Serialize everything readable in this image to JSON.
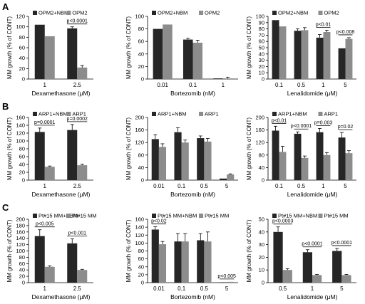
{
  "colors": {
    "series1": "#262626",
    "series2": "#8c8c8c",
    "axis": "#000000",
    "error": "#000000"
  },
  "rows": [
    {
      "label": "A",
      "ylabel": "MM growth (% of CONT)"
    },
    {
      "label": "B",
      "ylabel": "MM growth (% of CONT)"
    },
    {
      "label": "C",
      "ylabel": "MM growth (% of CONT)"
    }
  ],
  "chart_data": [
    {
      "panel": "A",
      "type": "bar",
      "xlabel": "Dexamethasone (μM)",
      "ylabel": "MM growth (% of CONT)",
      "categories": [
        "1",
        "2.5"
      ],
      "ylim": [
        0,
        120
      ],
      "yticks": [
        0,
        20,
        40,
        60,
        80,
        100,
        120
      ],
      "legend": "top-left",
      "series": [
        {
          "name": "OPM2+NBM",
          "values": [
            104,
            97
          ],
          "errors": [
            0,
            3
          ]
        },
        {
          "name": "OPM2",
          "values": [
            82,
            22
          ],
          "errors": [
            0,
            4
          ]
        }
      ],
      "annotations": [
        {
          "text": "p<0.0001",
          "category": 1
        }
      ]
    },
    {
      "panel": "A",
      "type": "bar",
      "xlabel": "Bortezomib (nM)",
      "ylabel": "MM growth (% of CONT)",
      "categories": [
        "0.01",
        "0.1",
        "1"
      ],
      "ylim": [
        0,
        100
      ],
      "yticks": [
        0,
        20,
        40,
        60,
        80,
        100
      ],
      "legend": "top-left",
      "series": [
        {
          "name": "OPM2+NBM",
          "values": [
            80,
            63,
            1
          ],
          "errors": [
            0,
            2,
            0
          ]
        },
        {
          "name": "OPM2",
          "values": [
            87,
            58,
            1
          ],
          "errors": [
            0,
            4,
            2
          ]
        }
      ],
      "annotations": []
    },
    {
      "panel": "A",
      "type": "bar",
      "xlabel": "Lenalidomide (μM)",
      "ylabel": "MM growth (% of CONT)",
      "categories": [
        "0.1",
        "0.5",
        "1",
        "5"
      ],
      "ylim": [
        0,
        100
      ],
      "yticks": [
        0,
        10,
        20,
        30,
        40,
        50,
        60,
        70,
        80,
        90,
        100
      ],
      "legend": "top-left",
      "series": [
        {
          "name": "OPM2+NBM",
          "values": [
            94,
            77,
            66,
            49
          ],
          "errors": [
            0,
            3,
            5,
            0
          ]
        },
        {
          "name": "OPM2",
          "values": [
            84,
            78,
            75,
            64
          ],
          "errors": [
            0,
            4,
            3,
            2
          ]
        }
      ],
      "annotations": [
        {
          "text": "p<0.01",
          "category": 2
        },
        {
          "text": "p<0.008",
          "category": 3
        }
      ]
    },
    {
      "panel": "B",
      "type": "bar",
      "xlabel": "Dexamethasone (μM)",
      "ylabel": "MM growth (% of CONT)",
      "categories": [
        "1",
        "2.5"
      ],
      "ylim": [
        0,
        160
      ],
      "yticks": [
        0,
        20,
        40,
        60,
        80,
        100,
        120,
        140,
        160
      ],
      "legend": "top-left",
      "series": [
        {
          "name": "ARP1+NBM",
          "values": [
            123,
            128
          ],
          "errors": [
            10,
            14
          ]
        },
        {
          "name": "ARP1",
          "values": [
            34,
            38
          ],
          "errors": [
            2,
            3
          ]
        }
      ],
      "annotations": [
        {
          "text": "p=0.0001",
          "category": 0
        },
        {
          "text": "p=0.0002",
          "category": 1
        }
      ]
    },
    {
      "panel": "B",
      "type": "bar",
      "xlabel": "Bortezomib (nM)",
      "ylabel": "MM growth (% of CONT)",
      "categories": [
        "0.01",
        "0.1",
        "0.5",
        "5"
      ],
      "ylim": [
        0,
        200
      ],
      "yticks": [
        0,
        40,
        80,
        120,
        160,
        200
      ],
      "legend": "top-left",
      "series": [
        {
          "name": "ARP1+NBM",
          "values": [
            131,
            153,
            134,
            5
          ],
          "errors": [
            14,
            14,
            7,
            0
          ]
        },
        {
          "name": "ARP1",
          "values": [
            106,
            120,
            123,
            18
          ],
          "errors": [
            10,
            8,
            10,
            2
          ]
        }
      ],
      "annotations": []
    },
    {
      "panel": "B",
      "type": "bar",
      "xlabel": "Lenalidomide (μM)",
      "ylabel": "MM growth (% of CONT)",
      "categories": [
        "0.1",
        "0.5",
        "1",
        "5"
      ],
      "ylim": [
        0,
        200
      ],
      "yticks": [
        0,
        40,
        80,
        120,
        160,
        200
      ],
      "legend": "top-left",
      "series": [
        {
          "name": "ARP1+NBM",
          "values": [
            158,
            148,
            153,
            136
          ],
          "errors": [
            14,
            6,
            12,
            16
          ]
        },
        {
          "name": "ARP1",
          "values": [
            90,
            71,
            80,
            86
          ],
          "errors": [
            18,
            6,
            8,
            8
          ]
        }
      ],
      "annotations": [
        {
          "text": "p<0.01",
          "category": 0
        },
        {
          "text": "p<0.0001",
          "category": 1
        },
        {
          "text": "p=0.003",
          "category": 2
        },
        {
          "text": "p=0.02",
          "category": 3
        }
      ]
    },
    {
      "panel": "C",
      "type": "bar",
      "xlabel": "Dexamethasone (μM)",
      "ylabel": "MM growth (% of CONT)",
      "categories": [
        "1",
        "2.5"
      ],
      "ylim": [
        0,
        200
      ],
      "yticks": [
        0,
        20,
        40,
        60,
        80,
        100,
        120,
        140,
        160,
        180,
        200
      ],
      "legend": "top-left",
      "series": [
        {
          "name": "Pt#15 MM+NBM",
          "values": [
            147,
            124
          ],
          "errors": [
            20,
            14
          ]
        },
        {
          "name": "Pt#15 MM",
          "values": [
            50,
            40
          ],
          "errors": [
            3,
            2
          ]
        }
      ],
      "annotations": [
        {
          "text": "p<0.005",
          "category": 0
        },
        {
          "text": "p<0.001",
          "category": 1
        }
      ]
    },
    {
      "panel": "C",
      "type": "bar",
      "xlabel": "Bortezomib (nM)",
      "ylabel": "MM growth (% of CONT)",
      "categories": [
        "0.01",
        "0.1",
        "0.5",
        "5"
      ],
      "ylim": [
        0,
        160
      ],
      "yticks": [
        0,
        20,
        40,
        60,
        80,
        100,
        120,
        140,
        160
      ],
      "legend": "top-left",
      "series": [
        {
          "name": "Pt#15 MM+NBM",
          "values": [
            134,
            104,
            107,
            1
          ],
          "errors": [
            7,
            20,
            17,
            0
          ]
        },
        {
          "name": "Pt#15 MM",
          "values": [
            97,
            104,
            104,
            2
          ],
          "errors": [
            7,
            20,
            24,
            0
          ]
        }
      ],
      "annotations": [
        {
          "text": "p<0.02",
          "category": 0
        },
        {
          "text": "p<0.005",
          "category": 3
        }
      ]
    },
    {
      "panel": "C",
      "type": "bar",
      "xlabel": "Lenalidomide (μM)",
      "ylabel": "MM growth (% of CONT)",
      "categories": [
        "0.5",
        "1",
        "5"
      ],
      "ylim": [
        0,
        50
      ],
      "yticks": [
        0,
        10,
        20,
        30,
        40,
        50
      ],
      "legend": "top-left",
      "series": [
        {
          "name": "Pt#15 MM+NBM",
          "values": [
            40,
            24,
            25
          ],
          "errors": [
            4,
            2,
            2
          ]
        },
        {
          "name": "Pt#15 MM",
          "values": [
            10,
            6,
            6
          ],
          "errors": [
            1,
            0.5,
            0.5
          ]
        }
      ],
      "annotations": [
        {
          "text": "p<0.0003",
          "category": 0
        },
        {
          "text": "p<0.0001",
          "category": 1
        },
        {
          "text": "p<0.0001",
          "category": 2
        }
      ]
    }
  ]
}
